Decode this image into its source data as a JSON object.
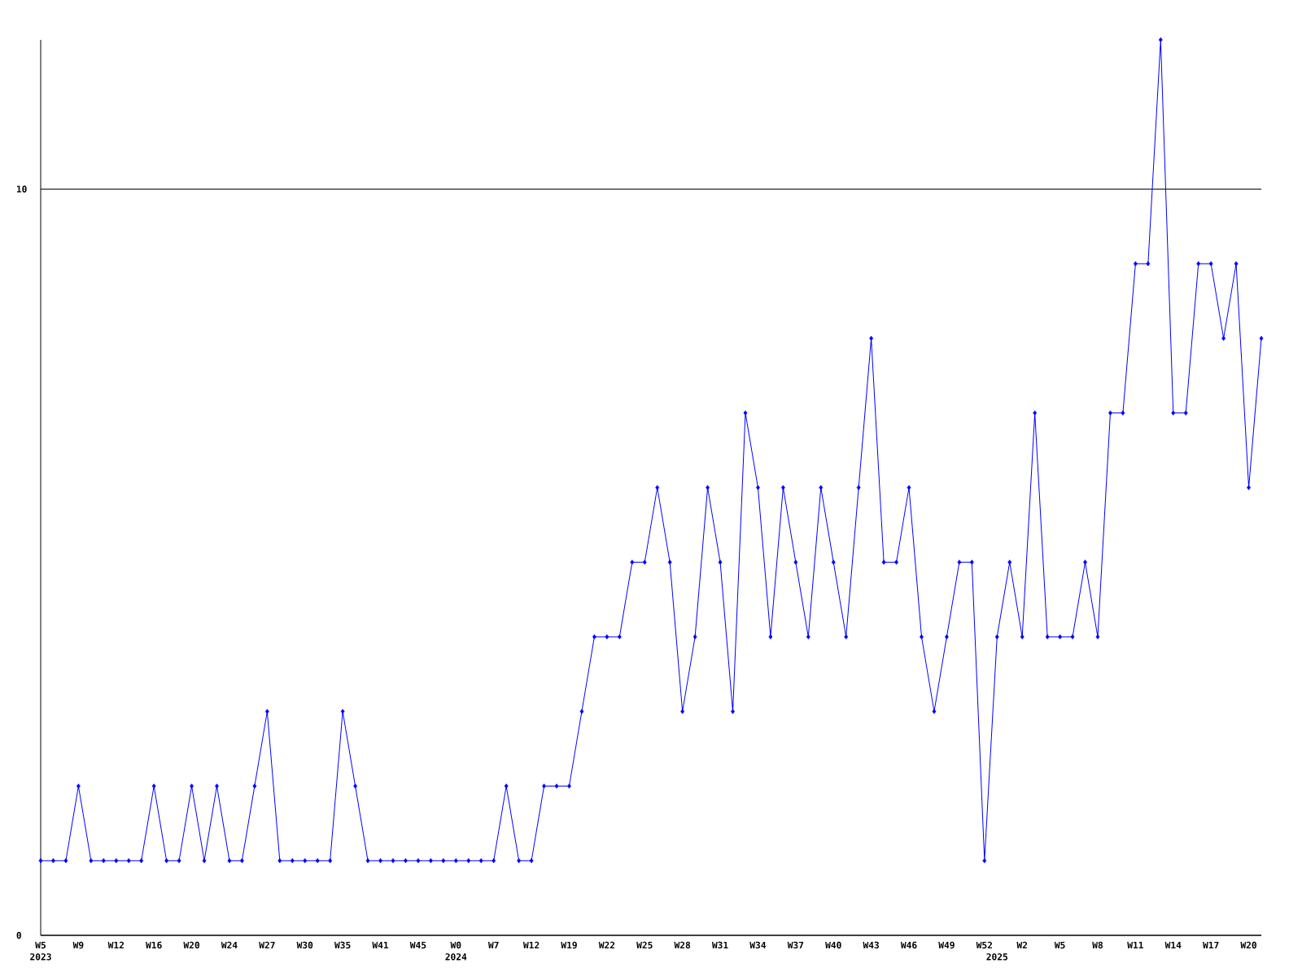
{
  "chart_data": {
    "type": "line",
    "categories": [
      "W5\n2023",
      null,
      null,
      "W9",
      null,
      null,
      "W12",
      null,
      null,
      "W16",
      null,
      null,
      "W20",
      null,
      null,
      "W24",
      null,
      null,
      "W27",
      null,
      null,
      "W30",
      null,
      null,
      "W35",
      null,
      null,
      "W41",
      null,
      null,
      "W45",
      null,
      null,
      "W0\n2024",
      null,
      null,
      "W7",
      null,
      null,
      "W12",
      null,
      null,
      "W19",
      null,
      null,
      "W22",
      null,
      null,
      "W25",
      null,
      null,
      "W28",
      null,
      null,
      "W31",
      null,
      null,
      "W34",
      null,
      null,
      "W37",
      null,
      null,
      "W40",
      null,
      null,
      "W43",
      null,
      null,
      "W46",
      null,
      null,
      "W49",
      null,
      null,
      "W52",
      "\n2025",
      null,
      "W2",
      null,
      null,
      "W5",
      null,
      null,
      "W8",
      null,
      null,
      "W11",
      null,
      null,
      "W14",
      null,
      null,
      "W17",
      null,
      null,
      "W20",
      null
    ],
    "values": [
      1,
      1,
      1,
      2,
      1,
      1,
      1,
      1,
      1,
      2,
      1,
      1,
      2,
      1,
      2,
      1,
      1,
      2,
      3,
      1,
      1,
      1,
      1,
      1,
      3,
      2,
      1,
      1,
      1,
      1,
      1,
      1,
      1,
      1,
      1,
      1,
      1,
      2,
      1,
      1,
      2,
      2,
      2,
      3,
      4,
      4,
      4,
      5,
      5,
      6,
      5,
      3,
      4,
      6,
      5,
      3,
      7,
      6,
      4,
      6,
      5,
      4,
      6,
      5,
      4,
      6,
      8,
      5,
      5,
      6,
      4,
      3,
      4,
      5,
      5,
      1,
      4,
      5,
      4,
      7,
      4,
      4,
      4,
      5,
      4,
      7,
      7,
      9,
      9,
      12,
      7,
      7,
      9,
      9,
      8,
      9,
      6,
      8
    ],
    "color": "#0000ff",
    "marker": "diamond",
    "line_style": "solid",
    "ylim": [
      0,
      12
    ],
    "yticks": [
      0,
      10
    ],
    "grid": "y"
  }
}
